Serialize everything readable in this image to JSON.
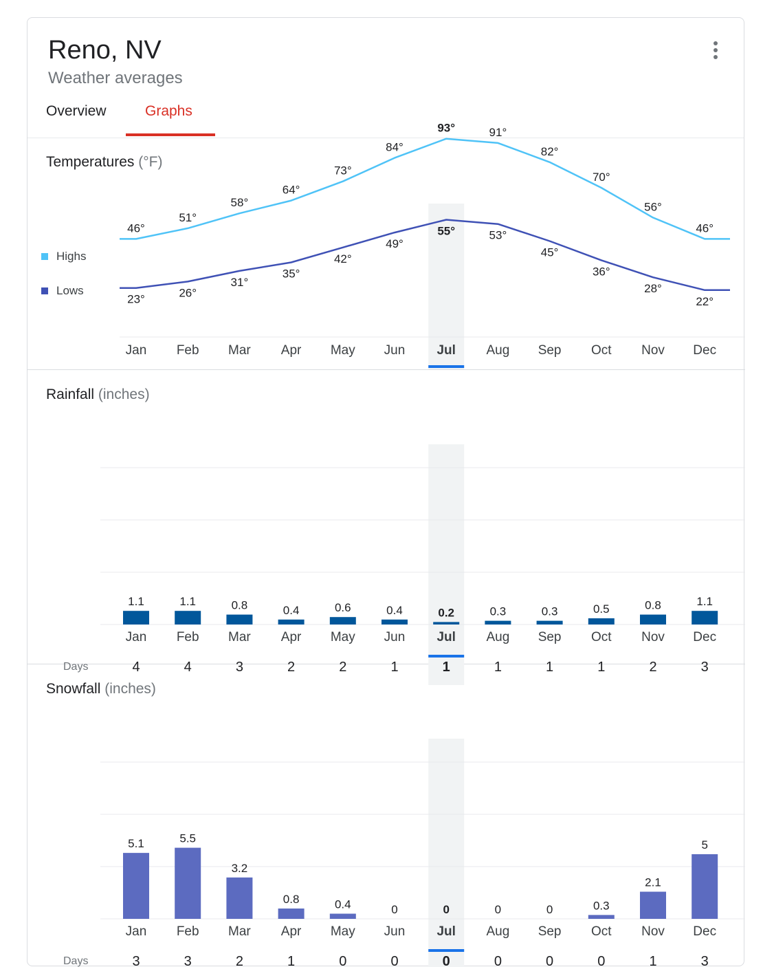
{
  "header": {
    "title": "Reno, NV",
    "subtitle": "Weather averages",
    "tabs": [
      {
        "label": "Overview",
        "active": false
      },
      {
        "label": "Graphs",
        "active": true
      }
    ],
    "menu_icon": "more-vert-icon"
  },
  "selected_month": "Jul",
  "colors": {
    "highs": "#4fc3f7",
    "lows": "#3f51b5",
    "rain": "#01579b",
    "snow": "#5c6bc0",
    "accent": "#d93025",
    "selection": "#1a73e8"
  },
  "temperatures": {
    "title": "Temperatures",
    "unit": "(°F)",
    "legend": {
      "highs": "Highs",
      "lows": "Lows"
    },
    "chart_data": {
      "type": "line",
      "categories": [
        "Jan",
        "Feb",
        "Mar",
        "Apr",
        "May",
        "Jun",
        "Jul",
        "Aug",
        "Sep",
        "Oct",
        "Nov",
        "Dec"
      ],
      "series": [
        {
          "name": "Highs",
          "values": [
            46,
            51,
            58,
            64,
            73,
            84,
            93,
            91,
            82,
            70,
            56,
            46
          ]
        },
        {
          "name": "Lows",
          "values": [
            23,
            26,
            31,
            35,
            42,
            49,
            55,
            53,
            45,
            36,
            28,
            22
          ]
        }
      ],
      "value_suffix": "°"
    }
  },
  "rainfall": {
    "title": "Rainfall",
    "unit": "(inches)",
    "days_label": "Days",
    "chart_data": {
      "type": "bar",
      "categories": [
        "Jan",
        "Feb",
        "Mar",
        "Apr",
        "May",
        "Jun",
        "Jul",
        "Aug",
        "Sep",
        "Oct",
        "Nov",
        "Dec"
      ],
      "values": [
        1.1,
        1.1,
        0.8,
        0.4,
        0.6,
        0.4,
        0.2,
        0.3,
        0.3,
        0.5,
        0.8,
        1.1
      ],
      "days": [
        4,
        4,
        3,
        2,
        2,
        1,
        1,
        1,
        1,
        1,
        2,
        3
      ]
    }
  },
  "snowfall": {
    "title": "Snowfall",
    "unit": "(inches)",
    "days_label": "Days",
    "chart_data": {
      "type": "bar",
      "categories": [
        "Jan",
        "Feb",
        "Mar",
        "Apr",
        "May",
        "Jun",
        "Jul",
        "Aug",
        "Sep",
        "Oct",
        "Nov",
        "Dec"
      ],
      "values": [
        5.1,
        5.5,
        3.2,
        0.8,
        0.4,
        0,
        0,
        0,
        0,
        0.3,
        2.1,
        5
      ],
      "days": [
        3,
        3,
        2,
        1,
        0,
        0,
        0,
        0,
        0,
        0,
        1,
        3
      ]
    }
  }
}
